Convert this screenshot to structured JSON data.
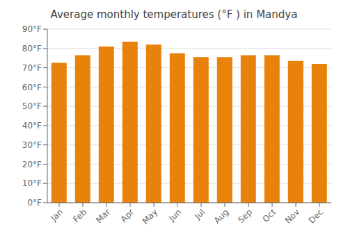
{
  "chart_data": {
    "type": "bar",
    "title": "Average monthly temperatures (°F ) in Mandya",
    "categories": [
      "Jan",
      "Feb",
      "Mar",
      "Apr",
      "May",
      "Jun",
      "Jul",
      "Aug",
      "Sep",
      "Oct",
      "Nov",
      "Dec"
    ],
    "values": [
      72.5,
      76.5,
      81.0,
      83.5,
      82.0,
      77.5,
      75.5,
      75.5,
      76.5,
      76.5,
      73.5,
      72.0
    ],
    "color": "#E8820A",
    "ylim": [
      0,
      90
    ],
    "yticks": [
      {
        "value": 0,
        "label": "0°F"
      },
      {
        "value": 10,
        "label": "10°F"
      },
      {
        "value": 20,
        "label": "20°F"
      },
      {
        "value": 30,
        "label": "30°F"
      },
      {
        "value": 40,
        "label": "40°F"
      },
      {
        "value": 50,
        "label": "50°F"
      },
      {
        "value": 60,
        "label": "60°F"
      },
      {
        "value": 70,
        "label": "70°F"
      },
      {
        "value": 80,
        "label": "80°F"
      },
      {
        "value": 90,
        "label": "90°F"
      }
    ],
    "grid": true
  }
}
